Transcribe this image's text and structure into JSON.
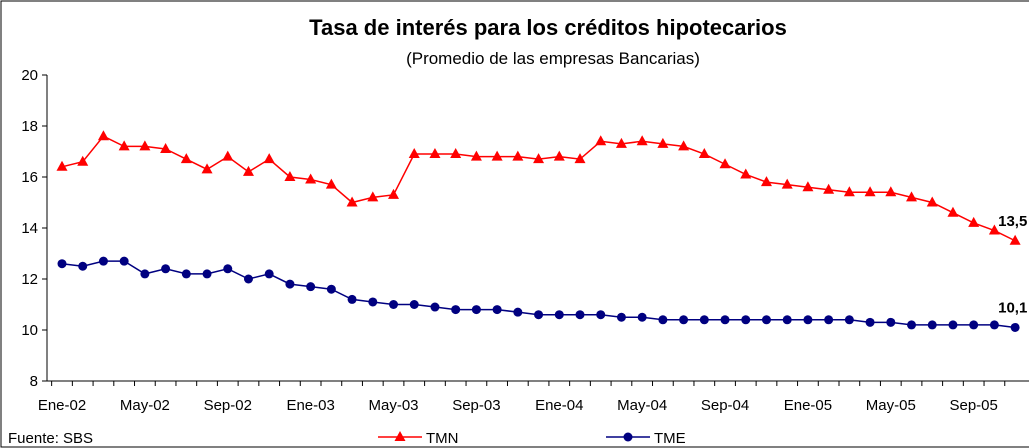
{
  "chart_data": {
    "type": "line",
    "title": "Tasa de interés para los créditos hipotecarios",
    "subtitle": "(Promedio de las empresas Bancarias)",
    "source": "Fuente: SBS",
    "categories": [
      "Ene-02",
      null,
      null,
      null,
      "May-02",
      null,
      null,
      null,
      "Sep-02",
      null,
      null,
      null,
      "Ene-03",
      null,
      null,
      null,
      "May-03",
      null,
      null,
      null,
      "Sep-03",
      null,
      null,
      null,
      "Ene-04",
      null,
      null,
      null,
      "May-04",
      null,
      null,
      null,
      "Sep-04",
      null,
      null,
      null,
      "Ene-05",
      null,
      null,
      null,
      "May-05",
      null,
      null,
      null,
      "Sep-05",
      null,
      null
    ],
    "series": [
      {
        "name": "TMN",
        "color": "#ff0000",
        "marker": "triangle",
        "values": [
          16.4,
          16.6,
          17.6,
          17.2,
          17.2,
          17.1,
          16.7,
          16.3,
          16.8,
          16.2,
          16.7,
          16.0,
          15.9,
          15.7,
          15.0,
          15.2,
          15.3,
          16.9,
          16.9,
          16.9,
          16.8,
          16.8,
          16.8,
          16.7,
          16.8,
          16.7,
          17.4,
          17.3,
          17.4,
          17.3,
          17.2,
          16.9,
          16.5,
          16.1,
          15.8,
          15.7,
          15.6,
          15.5,
          15.4,
          15.4,
          15.4,
          15.2,
          15.0,
          14.6,
          14.2,
          13.9,
          13.5
        ],
        "value_labels": [
          null,
          null,
          null,
          null,
          null,
          null,
          null,
          null,
          null,
          null,
          null,
          null,
          null,
          null,
          null,
          null,
          null,
          null,
          null,
          null,
          null,
          null,
          null,
          null,
          null,
          null,
          null,
          null,
          null,
          null,
          null,
          null,
          null,
          null,
          null,
          null,
          null,
          null,
          null,
          null,
          null,
          null,
          null,
          null,
          null,
          null,
          "13,5"
        ]
      },
      {
        "name": "TME",
        "color": "#000080",
        "marker": "circle",
        "values": [
          12.6,
          12.5,
          12.7,
          12.7,
          12.2,
          12.4,
          12.2,
          12.2,
          12.4,
          12.0,
          12.2,
          11.8,
          11.7,
          11.6,
          11.2,
          11.1,
          11.0,
          11.0,
          10.9,
          10.8,
          10.8,
          10.8,
          10.7,
          10.6,
          10.6,
          10.6,
          10.6,
          10.5,
          10.5,
          10.4,
          10.4,
          10.4,
          10.4,
          10.4,
          10.4,
          10.4,
          10.4,
          10.4,
          10.4,
          10.3,
          10.3,
          10.2,
          10.2,
          10.2,
          10.2,
          10.2,
          10.1
        ],
        "value_labels": [
          null,
          null,
          null,
          null,
          null,
          null,
          null,
          null,
          null,
          null,
          null,
          null,
          null,
          null,
          null,
          null,
          null,
          null,
          null,
          null,
          null,
          null,
          null,
          null,
          null,
          null,
          null,
          null,
          null,
          null,
          null,
          null,
          null,
          null,
          null,
          null,
          null,
          null,
          null,
          null,
          null,
          null,
          null,
          null,
          null,
          null,
          "10,1"
        ]
      }
    ],
    "ylim": [
      8,
      20
    ],
    "yticks": [
      8,
      10,
      12,
      14,
      16,
      18,
      20
    ],
    "grid": false
  }
}
